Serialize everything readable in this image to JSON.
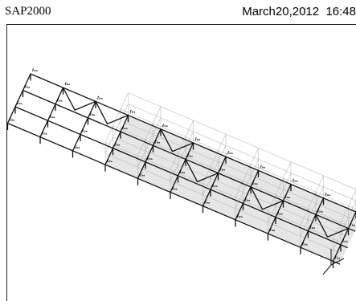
{
  "header": {
    "app_title": "SAP2000",
    "date": "March20,2012",
    "time": "16:48"
  },
  "model_view": {
    "label_text": "ℓ₀ₐ",
    "colors": {
      "frame": "#111111",
      "grid": "#b9b9b9",
      "shading": "#e6e6e6",
      "label": "#000000"
    }
  }
}
